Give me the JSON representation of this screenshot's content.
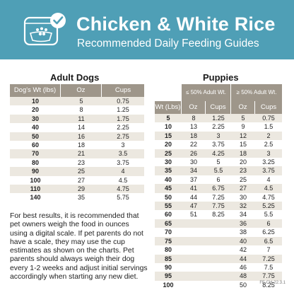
{
  "header": {
    "title": "Chicken & White Rice",
    "subtitle": "Recommended Daily Feeding Guides",
    "bg_color": "#4f9fb6",
    "logo_icon": "dog-bowl-check-icon"
  },
  "adult": {
    "title": "Adult Dogs",
    "columns": [
      "Dog's Wt (lbs)",
      "Oz",
      "Cups"
    ],
    "rows": [
      [
        "10",
        "5",
        "0.75"
      ],
      [
        "20",
        "8",
        "1.25"
      ],
      [
        "30",
        "11",
        "1.75"
      ],
      [
        "40",
        "14",
        "2.25"
      ],
      [
        "50",
        "16",
        "2.75"
      ],
      [
        "60",
        "18",
        "3"
      ],
      [
        "70",
        "21",
        "3.5"
      ],
      [
        "80",
        "23",
        "3.75"
      ],
      [
        "90",
        "25",
        "4"
      ],
      [
        "100",
        "27",
        "4.5"
      ],
      [
        "110",
        "29",
        "4.75"
      ],
      [
        "140",
        "35",
        "5.75"
      ]
    ]
  },
  "puppies": {
    "title": "Puppies",
    "group_low": "≤ 50% Adult Wt.",
    "group_high": "≥ 50% Adult Wt.",
    "columns": [
      "Wt (Lbs)",
      "Oz",
      "Cups",
      "Oz",
      "Cups"
    ],
    "rows": [
      [
        "5",
        "8",
        "1.25",
        "5",
        "0.75"
      ],
      [
        "10",
        "13",
        "2.25",
        "9",
        "1.5"
      ],
      [
        "15",
        "18",
        "3",
        "12",
        "2"
      ],
      [
        "20",
        "22",
        "3.75",
        "15",
        "2.5"
      ],
      [
        "25",
        "26",
        "4.25",
        "18",
        "3"
      ],
      [
        "30",
        "30",
        "5",
        "20",
        "3.25"
      ],
      [
        "35",
        "34",
        "5.5",
        "23",
        "3.75"
      ],
      [
        "40",
        "37",
        "6",
        "25",
        "4"
      ],
      [
        "45",
        "41",
        "6.75",
        "27",
        "4.5"
      ],
      [
        "50",
        "44",
        "7.25",
        "30",
        "4.75"
      ],
      [
        "55",
        "47",
        "7.75",
        "32",
        "5.25"
      ],
      [
        "60",
        "51",
        "8.25",
        "34",
        "5.5"
      ],
      [
        "65",
        "",
        "",
        "36",
        "6"
      ],
      [
        "70",
        "",
        "",
        "38",
        "6.25"
      ],
      [
        "75",
        "",
        "",
        "40",
        "6.5"
      ],
      [
        "80",
        "",
        "",
        "42",
        "7"
      ],
      [
        "85",
        "",
        "",
        "44",
        "7.25"
      ],
      [
        "90",
        "",
        "",
        "46",
        "7.5"
      ],
      [
        "95",
        "",
        "",
        "48",
        "7.75"
      ],
      [
        "100",
        "",
        "",
        "50",
        "8.25"
      ]
    ]
  },
  "note": "For best results, it is recommended that pet owners weigh the food in ounces using a digital scale. If pet parents do not have a scale, they may use the cup estimates as shown on the charts. Pet parents should always weigh their dog every 1-2 weeks and adjust initial servings accordingly when starting any new diet.",
  "code": "FF-CH-22.3.1"
}
